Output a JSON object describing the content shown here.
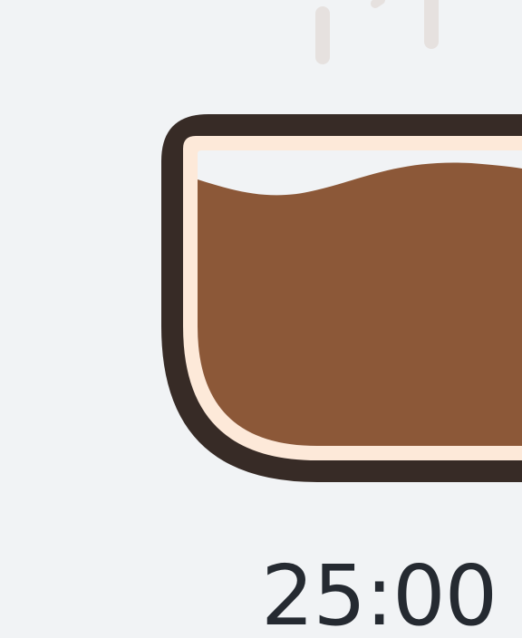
{
  "timer": {
    "time_remaining": "25:00"
  },
  "colors": {
    "background": "#f1f3f5",
    "cup_outline": "#372b26",
    "cup_inner_rim": "#fde9d9",
    "coffee": "#8c5838",
    "steam": "#e6e1df",
    "timer_text": "#252a31"
  },
  "icons": {
    "cup": "coffee-cup-icon",
    "steam": "steam-icon"
  }
}
